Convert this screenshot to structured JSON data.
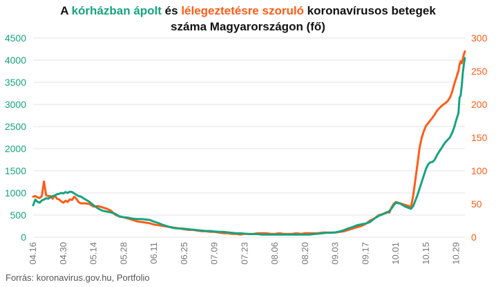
{
  "title": {
    "prefix": "A ",
    "green_part": "kórházban ápolt",
    "middle": " és ",
    "orange_part": "lélegeztetésre szoruló",
    "suffix": " koronavírusos betegek",
    "line2": "száma Magyarországon  (fő)"
  },
  "source": "Forrás: koronavirus.gov.hu, Portfolio",
  "colors": {
    "hospitalized": "#16a37f",
    "ventilated": "#ff5c16",
    "grid": "#e3e3e3",
    "axis_text": "#777777"
  },
  "chart_data": {
    "type": "line",
    "x_ticks": [
      "04.16",
      "04.30",
      "05.14",
      "05.28",
      "06.11",
      "06.25",
      "07.09",
      "07.23",
      "08.06",
      "08.20",
      "09.03",
      "09.17",
      "10.01",
      "10.15",
      "10.29"
    ],
    "x_tick_days": [
      0,
      14,
      28,
      42,
      56,
      70,
      84,
      98,
      112,
      126,
      140,
      154,
      168,
      182,
      196
    ],
    "x_range_days": [
      0,
      198
    ],
    "y_left": {
      "min": 0,
      "max": 4500,
      "ticks": [
        0,
        500,
        1000,
        1500,
        2000,
        2500,
        3000,
        3500,
        4000,
        4500
      ]
    },
    "y_right": {
      "min": 0,
      "max": 300,
      "ticks": [
        0,
        50,
        100,
        150,
        200,
        250,
        300
      ]
    },
    "grid": true,
    "series": [
      {
        "axis": "left",
        "points": [
          [
            0,
            720
          ],
          [
            1,
            850
          ],
          [
            2,
            800
          ],
          [
            3,
            780
          ],
          [
            4,
            830
          ],
          [
            5,
            850
          ],
          [
            6,
            880
          ],
          [
            7,
            870
          ],
          [
            8,
            900
          ],
          [
            9,
            930
          ],
          [
            10,
            940
          ],
          [
            11,
            970
          ],
          [
            12,
            980
          ],
          [
            13,
            1000
          ],
          [
            14,
            990
          ],
          [
            15,
            1020
          ],
          [
            16,
            1000
          ],
          [
            17,
            1030
          ],
          [
            18,
            1020
          ],
          [
            19,
            990
          ],
          [
            20,
            960
          ],
          [
            21,
            930
          ],
          [
            22,
            920
          ],
          [
            24,
            860
          ],
          [
            26,
            800
          ],
          [
            28,
            720
          ],
          [
            30,
            650
          ],
          [
            32,
            600
          ],
          [
            34,
            580
          ],
          [
            36,
            560
          ],
          [
            38,
            530
          ],
          [
            40,
            470
          ],
          [
            42,
            450
          ],
          [
            44,
            440
          ],
          [
            46,
            420
          ],
          [
            48,
            410
          ],
          [
            50,
            410
          ],
          [
            52,
            400
          ],
          [
            54,
            390
          ],
          [
            56,
            350
          ],
          [
            58,
            320
          ],
          [
            60,
            280
          ],
          [
            62,
            250
          ],
          [
            64,
            220
          ],
          [
            66,
            200
          ],
          [
            68,
            200
          ],
          [
            70,
            190
          ],
          [
            72,
            180
          ],
          [
            74,
            170
          ],
          [
            76,
            160
          ],
          [
            78,
            150
          ],
          [
            80,
            140
          ],
          [
            82,
            140
          ],
          [
            84,
            130
          ],
          [
            86,
            120
          ],
          [
            88,
            120
          ],
          [
            90,
            110
          ],
          [
            92,
            100
          ],
          [
            94,
            90
          ],
          [
            96,
            90
          ],
          [
            98,
            80
          ],
          [
            100,
            70
          ],
          [
            102,
            70
          ],
          [
            104,
            70
          ],
          [
            106,
            60
          ],
          [
            108,
            60
          ],
          [
            110,
            60
          ],
          [
            112,
            60
          ],
          [
            114,
            60
          ],
          [
            116,
            60
          ],
          [
            118,
            60
          ],
          [
            120,
            60
          ],
          [
            122,
            60
          ],
          [
            124,
            60
          ],
          [
            126,
            60
          ],
          [
            128,
            60
          ],
          [
            130,
            70
          ],
          [
            132,
            80
          ],
          [
            134,
            90
          ],
          [
            136,
            100
          ],
          [
            138,
            100
          ],
          [
            140,
            110
          ],
          [
            142,
            130
          ],
          [
            144,
            160
          ],
          [
            146,
            200
          ],
          [
            148,
            230
          ],
          [
            150,
            270
          ],
          [
            152,
            290
          ],
          [
            154,
            310
          ],
          [
            156,
            340
          ],
          [
            158,
            420
          ],
          [
            160,
            480
          ],
          [
            162,
            520
          ],
          [
            164,
            560
          ],
          [
            165,
            590
          ],
          [
            166,
            650
          ],
          [
            167,
            720
          ],
          [
            168,
            780
          ],
          [
            170,
            760
          ],
          [
            172,
            700
          ],
          [
            174,
            660
          ],
          [
            175,
            640
          ],
          [
            176,
            700
          ],
          [
            177,
            820
          ],
          [
            178,
            950
          ],
          [
            179,
            1100
          ],
          [
            180,
            1250
          ],
          [
            181,
            1400
          ],
          [
            182,
            1550
          ],
          [
            183,
            1650
          ],
          [
            184,
            1690
          ],
          [
            185,
            1700
          ],
          [
            186,
            1750
          ],
          [
            187,
            1850
          ],
          [
            188,
            1930
          ],
          [
            189,
            2000
          ],
          [
            190,
            2080
          ],
          [
            191,
            2150
          ],
          [
            192,
            2200
          ],
          [
            193,
            2250
          ],
          [
            194,
            2350
          ],
          [
            195,
            2480
          ],
          [
            196,
            2650
          ],
          [
            197,
            2800
          ],
          [
            197.5,
            3150
          ],
          [
            198,
            3200
          ],
          [
            198.5,
            3400
          ],
          [
            199,
            3700
          ],
          [
            199.5,
            3900
          ],
          [
            200,
            4050
          ]
        ]
      },
      {
        "axis": "right",
        "points": [
          [
            0,
            61
          ],
          [
            1,
            62
          ],
          [
            2,
            60
          ],
          [
            3,
            59
          ],
          [
            4,
            62
          ],
          [
            5,
            84
          ],
          [
            6,
            63
          ],
          [
            7,
            62
          ],
          [
            8,
            62
          ],
          [
            9,
            58
          ],
          [
            10,
            63
          ],
          [
            11,
            58
          ],
          [
            12,
            57
          ],
          [
            13,
            54
          ],
          [
            14,
            52
          ],
          [
            15,
            55
          ],
          [
            16,
            53
          ],
          [
            17,
            57
          ],
          [
            18,
            56
          ],
          [
            19,
            61
          ],
          [
            20,
            58
          ],
          [
            21,
            53
          ],
          [
            22,
            51
          ],
          [
            24,
            51
          ],
          [
            26,
            50
          ],
          [
            28,
            46
          ],
          [
            30,
            47
          ],
          [
            32,
            45
          ],
          [
            34,
            43
          ],
          [
            36,
            40
          ],
          [
            38,
            34
          ],
          [
            40,
            31
          ],
          [
            42,
            30
          ],
          [
            44,
            28
          ],
          [
            46,
            26
          ],
          [
            48,
            24
          ],
          [
            50,
            23
          ],
          [
            52,
            22
          ],
          [
            54,
            21
          ],
          [
            56,
            19
          ],
          [
            58,
            18
          ],
          [
            60,
            17
          ],
          [
            62,
            16
          ],
          [
            64,
            15
          ],
          [
            66,
            14
          ],
          [
            68,
            13
          ],
          [
            70,
            12
          ],
          [
            72,
            11
          ],
          [
            74,
            11
          ],
          [
            76,
            10
          ],
          [
            78,
            9
          ],
          [
            80,
            9
          ],
          [
            82,
            8
          ],
          [
            84,
            8
          ],
          [
            86,
            7
          ],
          [
            88,
            6
          ],
          [
            90,
            6
          ],
          [
            92,
            5
          ],
          [
            94,
            5
          ],
          [
            96,
            4
          ],
          [
            98,
            5
          ],
          [
            100,
            5
          ],
          [
            102,
            5
          ],
          [
            104,
            6
          ],
          [
            106,
            6
          ],
          [
            108,
            6
          ],
          [
            110,
            5
          ],
          [
            112,
            5
          ],
          [
            114,
            6
          ],
          [
            116,
            5
          ],
          [
            118,
            5
          ],
          [
            120,
            5
          ],
          [
            122,
            6
          ],
          [
            124,
            5
          ],
          [
            126,
            6
          ],
          [
            128,
            6
          ],
          [
            130,
            6
          ],
          [
            132,
            6
          ],
          [
            134,
            7
          ],
          [
            136,
            7
          ],
          [
            138,
            7
          ],
          [
            140,
            7
          ],
          [
            142,
            8
          ],
          [
            144,
            9
          ],
          [
            146,
            11
          ],
          [
            148,
            13
          ],
          [
            150,
            15
          ],
          [
            152,
            17
          ],
          [
            154,
            20
          ],
          [
            156,
            25
          ],
          [
            158,
            28
          ],
          [
            160,
            33
          ],
          [
            162,
            35
          ],
          [
            164,
            38
          ],
          [
            165,
            37
          ],
          [
            166,
            45
          ],
          [
            167,
            50
          ],
          [
            168,
            53
          ],
          [
            170,
            51
          ],
          [
            172,
            49
          ],
          [
            174,
            47
          ],
          [
            175,
            45
          ],
          [
            176,
            62
          ],
          [
            177,
            85
          ],
          [
            178,
            110
          ],
          [
            179,
            135
          ],
          [
            180,
            150
          ],
          [
            181,
            160
          ],
          [
            182,
            168
          ],
          [
            183,
            172
          ],
          [
            184,
            176
          ],
          [
            185,
            180
          ],
          [
            186,
            185
          ],
          [
            187,
            190
          ],
          [
            188,
            194
          ],
          [
            189,
            197
          ],
          [
            190,
            200
          ],
          [
            191,
            202
          ],
          [
            192,
            205
          ],
          [
            193,
            210
          ],
          [
            194,
            218
          ],
          [
            195,
            230
          ],
          [
            196,
            240
          ],
          [
            197,
            250
          ],
          [
            197.5,
            260
          ],
          [
            198,
            265
          ],
          [
            198.5,
            262
          ],
          [
            199,
            268
          ],
          [
            199.5,
            275
          ],
          [
            200,
            280
          ]
        ]
      }
    ]
  }
}
